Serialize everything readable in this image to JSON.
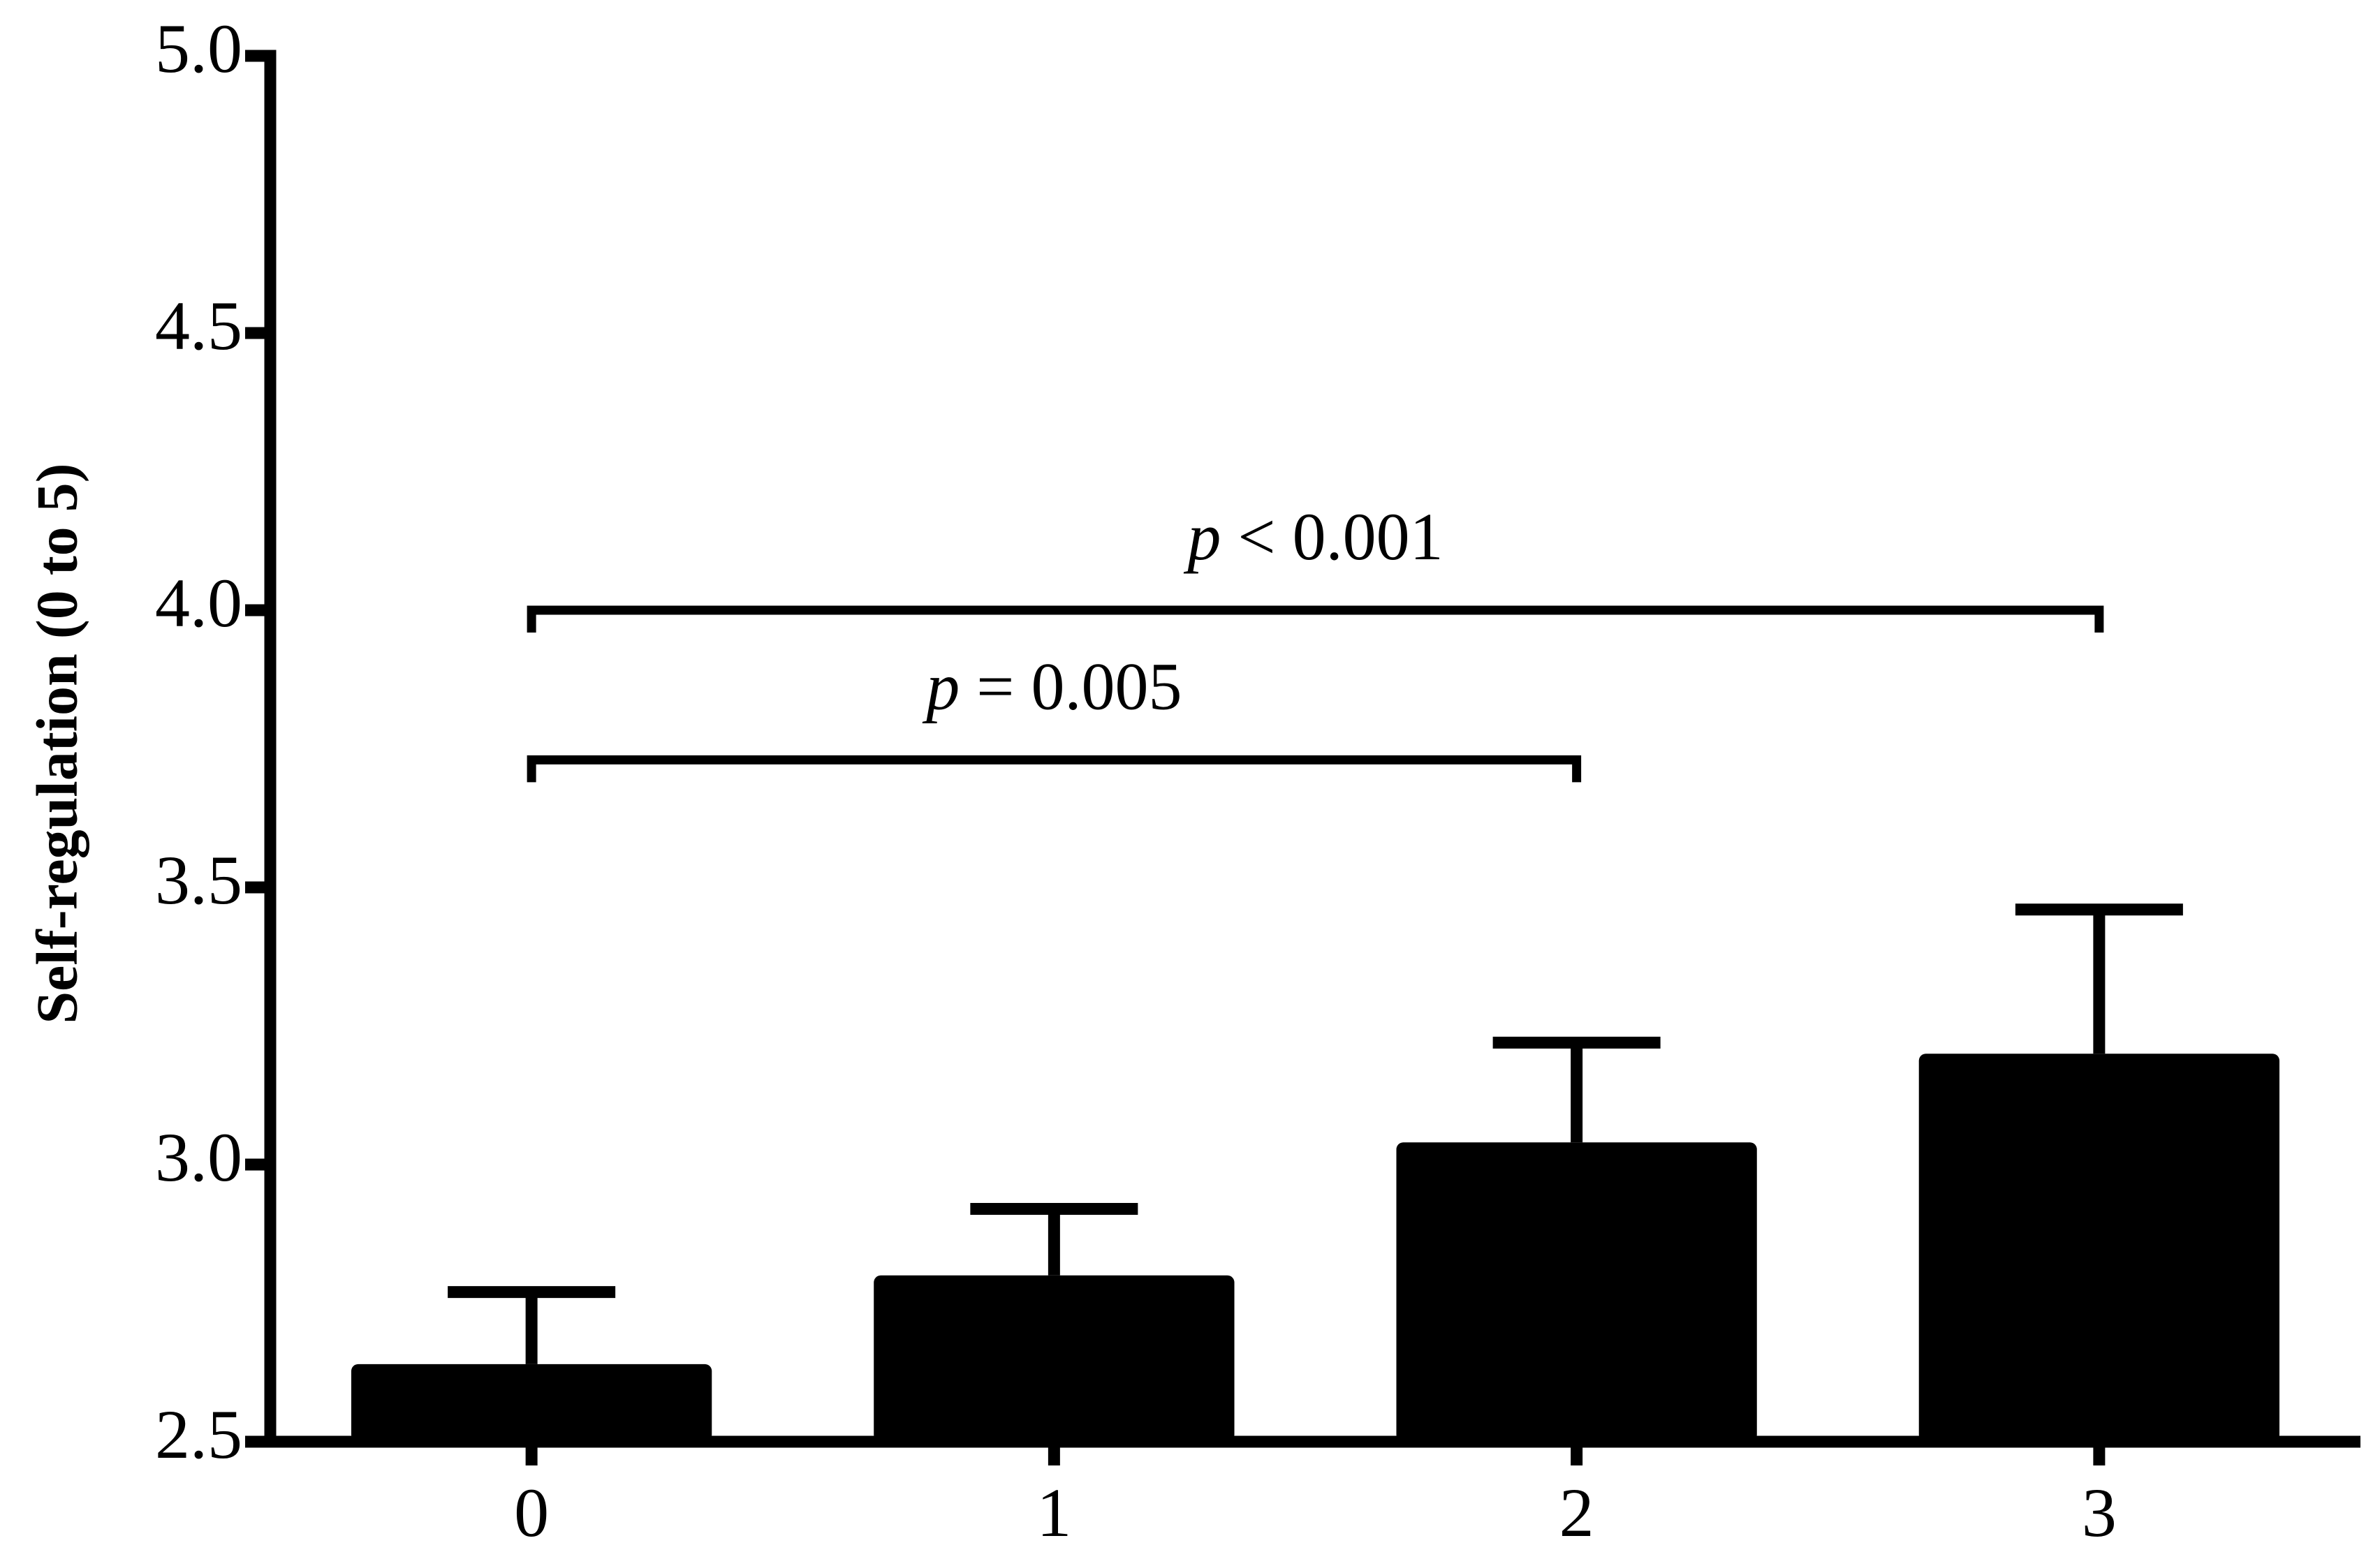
{
  "chart_data": {
    "type": "bar",
    "ylabel": "Self-regulation (0 to 5)",
    "categories": [
      "0",
      "1",
      "2",
      "3"
    ],
    "values": [
      2.64,
      2.8,
      3.04,
      3.2
    ],
    "errors": [
      0.13,
      0.12,
      0.18,
      0.26
    ],
    "color": "#000000",
    "ylim": [
      2.5,
      5.0
    ],
    "yticks": [
      2.5,
      {
        "value": 3,
        "label": "3.0"
      },
      3.5,
      {
        "value": 4,
        "label": "4.0"
      },
      4.5,
      {
        "value": 5,
        "label": "5.0"
      }
    ],
    "annotations": [
      {
        "text": "p = 0.005",
        "y": 3.73
      },
      {
        "text": "p < 0.001",
        "y": 4.0
      }
    ]
  }
}
